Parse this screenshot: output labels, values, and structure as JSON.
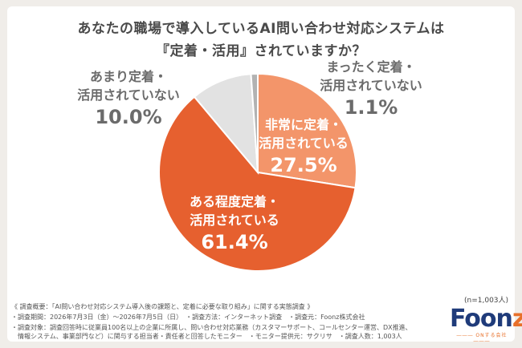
{
  "header": {
    "title_line1": "あなたの職場で導入しているAI問い合わせ対応システムは",
    "title_line2": "『定着・活用』されていますか？"
  },
  "chart_data": {
    "type": "pie",
    "title": "あなたの職場で導入しているAI問い合わせ対応システムは『定着・活用』されていますか？",
    "slices": [
      {
        "label": "非常に定着・活用されている",
        "line1": "非常に定着・",
        "line2": "活用されている",
        "value": 27.5,
        "value_label": "27.5%",
        "color": "#f3956a",
        "text": "white"
      },
      {
        "label": "ある程度定着・活用されている",
        "line1": "ある程度定着・",
        "line2": "活用されている",
        "value": 61.4,
        "value_label": "61.4%",
        "color": "#e6602f",
        "text": "white"
      },
      {
        "label": "あまり定着・活用されていない",
        "line1": "あまり定着・",
        "line2": "活用されていない",
        "value": 10.0,
        "value_label": "10.0%",
        "color": "#e2e2e2",
        "text": "grey"
      },
      {
        "label": "まったく定着・活用されていない",
        "line1": "まったく定着・",
        "line2": "活用されていない",
        "value": 1.1,
        "value_label": "1.1%",
        "color": "#b2b2b2",
        "text": "grey"
      }
    ]
  },
  "sample_size": "(n=1,003人)",
  "footnotes": {
    "line1": "《 調査概要：「AI問い合わせ対応システム導入後の課題と、定着に必要な取り組み」に関する実態調査 》",
    "line2": "・調査期間：2026年7月3日（金）～2026年7月5日（日）　・調査方法：インターネット調査　・調査元：Foonz株式会社",
    "line3": "・調査対象：調査回答時に従業員100名以上の企業に所属し、問い合わせ対応業務（カスタマーサポート、コールセンター運営、DX推進、",
    "line4": "　情報システム、事業部門など）に関与する担当者・責任者と回答したモニター　・モニター提供元：サクリサ　・調査人数：1,003人"
  },
  "logo": {
    "brand_main": "Foon",
    "brand_accent": "z",
    "tagline": "――― ONする会社 ―――"
  }
}
